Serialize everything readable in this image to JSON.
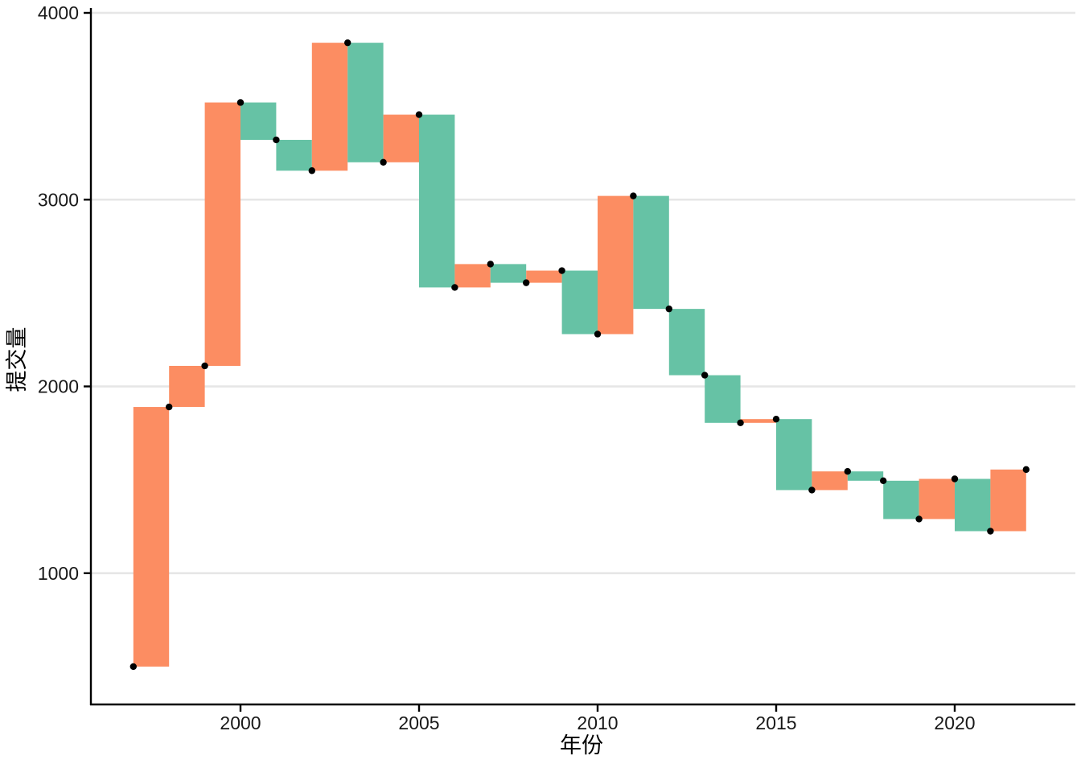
{
  "chart_data": {
    "type": "bar",
    "subtype": "waterfall-step",
    "title": "",
    "xlabel": "年份",
    "ylabel": "提交量",
    "x": [
      1997,
      1998,
      1999,
      2000,
      2001,
      2002,
      2003,
      2004,
      2005,
      2006,
      2007,
      2008,
      2009,
      2010,
      2011,
      2012,
      2013,
      2014,
      2015,
      2016,
      2017,
      2018,
      2019,
      2020,
      2021,
      2022
    ],
    "values": [
      500,
      1890,
      2110,
      3520,
      3320,
      3155,
      3840,
      3200,
      3455,
      2530,
      2655,
      2555,
      2620,
      2280,
      3020,
      2415,
      2060,
      1805,
      1825,
      1445,
      1545,
      1495,
      1290,
      1505,
      1225,
      1555
    ],
    "x_ticks": [
      2000,
      2005,
      2010,
      2015,
      2020
    ],
    "y_ticks": [
      1000,
      2000,
      3000,
      4000
    ],
    "xlim": [
      1995.8,
      2023.4
    ],
    "ylim": [
      298,
      4026
    ],
    "grid": "horizontal-major-only",
    "legend": "none",
    "markers": "black dot at every yearly value, placed on the step corner",
    "colors": {
      "increase": "#FC8D62",
      "decrease": "#66C2A5",
      "marker": "#000000",
      "gridline": "#E6E6E6",
      "axis_line": "#000000",
      "background": "#FFFFFF"
    }
  }
}
